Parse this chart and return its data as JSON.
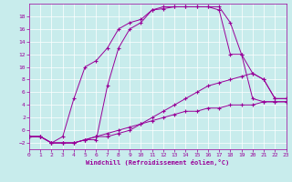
{
  "xlabel": "Windchill (Refroidissement éolien,°C)",
  "bg_color": "#c8ecec",
  "line_color": "#990099",
  "xlim": [
    0,
    23
  ],
  "ylim": [
    -3,
    20
  ],
  "xticks": [
    0,
    1,
    2,
    3,
    4,
    5,
    6,
    7,
    8,
    9,
    10,
    11,
    12,
    13,
    14,
    15,
    16,
    17,
    18,
    19,
    20,
    21,
    22,
    23
  ],
  "yticks": [
    -2,
    0,
    2,
    4,
    6,
    8,
    10,
    12,
    14,
    16,
    18
  ],
  "grid_color": "#ffffff",
  "curves": [
    {
      "x": [
        0,
        1,
        2,
        3,
        4,
        5,
        6,
        7,
        8,
        9,
        10,
        11,
        12,
        13,
        14,
        15,
        16,
        17,
        18,
        19,
        20,
        21,
        22,
        23
      ],
      "y": [
        -1,
        -1,
        -2,
        -1,
        5,
        10,
        11,
        13,
        16,
        17,
        17.5,
        19,
        19.2,
        19.5,
        19.5,
        19.5,
        19.5,
        19,
        12,
        12,
        5,
        4.5,
        4.5,
        4.5
      ]
    },
    {
      "x": [
        0,
        1,
        2,
        3,
        4,
        5,
        6,
        7,
        8,
        9,
        10,
        11,
        12,
        13,
        14,
        15,
        16,
        17,
        18,
        19,
        20,
        21,
        22,
        23
      ],
      "y": [
        -1,
        -1,
        -2,
        -2,
        -2,
        -1.5,
        -1.5,
        7,
        13,
        16,
        17,
        19,
        19.5,
        19.5,
        19.5,
        19.5,
        19.5,
        19.5,
        17,
        12,
        9,
        8,
        5,
        5
      ]
    },
    {
      "x": [
        0,
        1,
        2,
        3,
        4,
        5,
        6,
        7,
        8,
        9,
        10,
        11,
        12,
        13,
        14,
        15,
        16,
        17,
        18,
        19,
        20,
        21,
        22,
        23
      ],
      "y": [
        -1,
        -1,
        -2,
        -2,
        -2,
        -1.5,
        -1,
        -1,
        -0.5,
        0,
        1,
        2,
        3,
        4,
        5,
        6,
        7,
        7.5,
        8,
        8.5,
        9,
        8,
        5,
        5
      ]
    },
    {
      "x": [
        0,
        1,
        2,
        3,
        4,
        5,
        6,
        7,
        8,
        9,
        10,
        11,
        12,
        13,
        14,
        15,
        16,
        17,
        18,
        19,
        20,
        21,
        22,
        23
      ],
      "y": [
        -1,
        -1,
        -2,
        -2,
        -2,
        -1.5,
        -1,
        -0.5,
        0,
        0.5,
        1,
        1.5,
        2,
        2.5,
        3,
        3,
        3.5,
        3.5,
        4,
        4,
        4,
        4.5,
        4.5,
        4.5
      ]
    }
  ]
}
